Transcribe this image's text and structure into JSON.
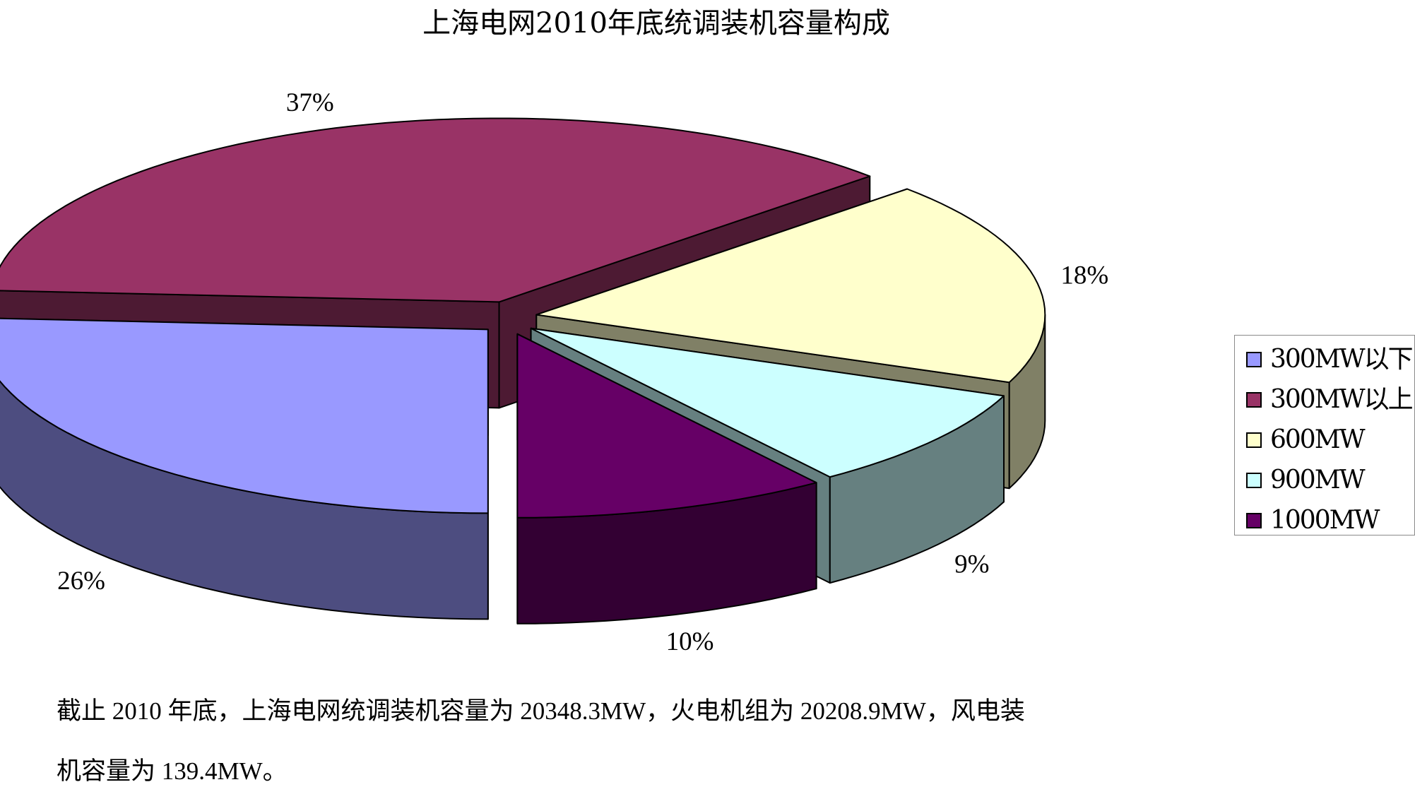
{
  "chart_data": {
    "type": "pie",
    "title": "上海电网2010年底统调装机容量构成",
    "categories": [
      "300MW以下",
      "300MW以上",
      "600MW",
      "900MW",
      "1000MW"
    ],
    "values": [
      26,
      37,
      18,
      9,
      10
    ],
    "labels": [
      "26%",
      "37%",
      "18%",
      "9%",
      "10%"
    ],
    "colors": [
      "#9999ff",
      "#993366",
      "#ffffcc",
      "#ccffff",
      "#660066"
    ],
    "exploded": true,
    "three_d": true,
    "legend_position": "right"
  },
  "caption": {
    "line1": "截止 2010 年底，上海电网统调装机容量为 20348.3MW，火电机组为 20208.9MW，风电装",
    "line2": "机容量为 139.4MW。"
  }
}
